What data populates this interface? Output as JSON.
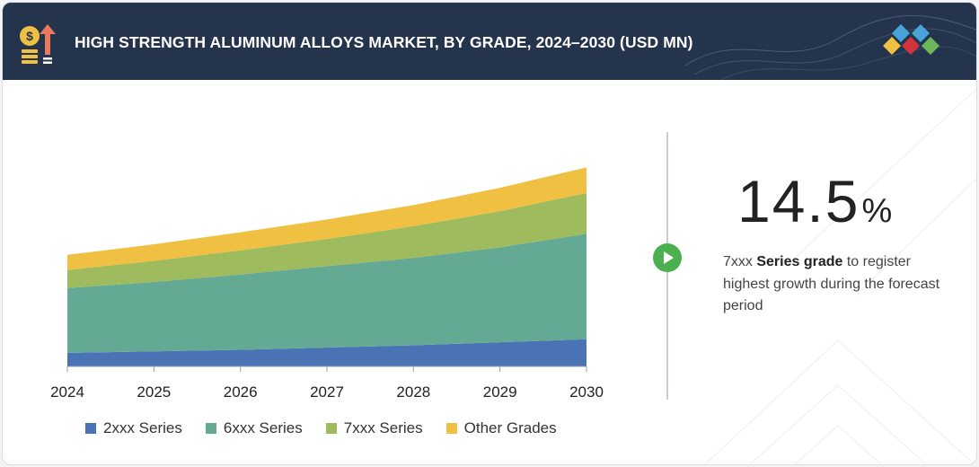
{
  "header": {
    "title": "HIGH STRENGTH ALUMINUM ALLOYS MARKET, BY GRADE, 2024–2030 (USD MN)",
    "icon": "money-growth-icon",
    "logo": "brand-diamond-logo"
  },
  "colors": {
    "header_bg": "#25344d",
    "s2xxx": "#4a73b5",
    "s6xxx": "#64a993",
    "s7xxx": "#9ebb5e",
    "other": "#f0c042",
    "play": "#4caf50"
  },
  "chart_data": {
    "type": "area",
    "stacked": true,
    "title": "HIGH STRENGTH ALUMINUM ALLOYS MARKET, BY GRADE, 2024–2030 (USD MN)",
    "x": [
      "2024",
      "2025",
      "2026",
      "2027",
      "2028",
      "2029",
      "2030"
    ],
    "series": [
      {
        "name": "2xxx Series",
        "color": "#4a73b5",
        "values": [
          9,
          10,
          11,
          12.5,
          14,
          16,
          18
        ]
      },
      {
        "name": "6xxx Series",
        "color": "#64a993",
        "values": [
          43,
          46,
          50,
          54,
          58,
          63,
          70
        ]
      },
      {
        "name": "7xxx Series",
        "color": "#9ebb5e",
        "values": [
          12,
          14,
          16,
          18,
          21,
          24,
          27
        ]
      },
      {
        "name": "Other Grades",
        "color": "#f0c042",
        "values": [
          10,
          11,
          12,
          13,
          14,
          15.5,
          17
        ]
      }
    ],
    "ylim": [
      0,
      140
    ],
    "grid": false,
    "legend": "bottom"
  },
  "kpi": {
    "value": "14.5",
    "unit": "%",
    "desc_prefix": "7xxx ",
    "desc_bold": "Series grade",
    "desc_suffix": " to register highest growth during the forecast period"
  }
}
